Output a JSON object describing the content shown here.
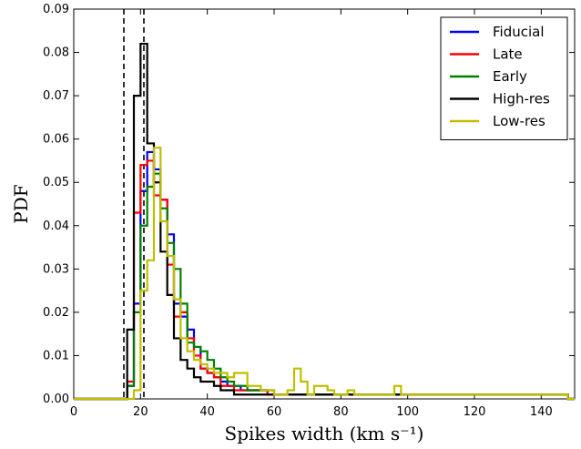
{
  "chart_data": {
    "type": "histogram",
    "title": "",
    "xlabel": "Spikes width (km s⁻¹)",
    "ylabel": "PDF",
    "xlim": [
      0,
      150
    ],
    "ylim": [
      0,
      0.09
    ],
    "xticks": [
      0,
      20,
      40,
      60,
      80,
      100,
      120,
      140
    ],
    "yticks": [
      0.0,
      0.01,
      0.02,
      0.03,
      0.04,
      0.05,
      0.06,
      0.07,
      0.08,
      0.09
    ],
    "ytick_labels": [
      "0.00",
      "0.01",
      "0.02",
      "0.03",
      "0.04",
      "0.05",
      "0.06",
      "0.07",
      "0.08",
      "0.09"
    ],
    "grid": false,
    "legend_position": "top-right",
    "vlines": [
      {
        "x": 15,
        "style": "dashed"
      },
      {
        "x": 21,
        "style": "dashed"
      }
    ],
    "bin_width": 2,
    "bin_edges_start": 14,
    "series": [
      {
        "name": "Fiducial",
        "color": "#0000ff",
        "values": [
          0.0,
          0.003,
          0.022,
          0.048,
          0.057,
          0.053,
          0.046,
          0.038,
          0.022,
          0.019,
          0.016,
          0.012,
          0.007,
          0.006,
          0.005,
          0.004,
          0.003,
          0.003,
          0.002,
          0.002,
          0.002,
          0.002,
          0.001,
          0.001,
          0.001,
          0.001,
          0.001,
          0.001,
          0.001,
          0.001,
          0.001,
          0.001,
          0.001,
          0.001,
          0.001,
          0.001,
          0.001,
          0.001,
          0.001,
          0.001,
          0.001,
          0.001,
          0.001,
          0.001,
          0.001,
          0.001,
          0.001,
          0.001,
          0.001,
          0.001,
          0.001,
          0.001,
          0.001,
          0.001,
          0.001,
          0.001,
          0.001,
          0.001,
          0.001,
          0.001,
          0.001,
          0.001,
          0.001,
          0.001,
          0.001,
          0.001,
          0.001,
          0.0
        ]
      },
      {
        "name": "Late",
        "color": "#ff0000",
        "values": [
          0.0,
          0.004,
          0.043,
          0.054,
          0.055,
          0.047,
          0.046,
          0.031,
          0.019,
          0.02,
          0.014,
          0.01,
          0.007,
          0.006,
          0.005,
          0.003,
          0.003,
          0.002,
          0.002,
          0.002,
          0.002,
          0.002,
          0.001,
          0.001,
          0.001,
          0.001,
          0.001,
          0.001,
          0.001,
          0.001,
          0.001,
          0.001,
          0.001,
          0.001,
          0.001,
          0.001,
          0.001,
          0.001,
          0.001,
          0.001,
          0.001,
          0.001,
          0.001,
          0.001,
          0.001,
          0.001,
          0.001,
          0.001,
          0.001,
          0.001,
          0.001,
          0.001,
          0.001,
          0.001,
          0.001,
          0.001,
          0.001,
          0.001,
          0.001,
          0.001,
          0.001,
          0.001,
          0.001,
          0.001,
          0.001,
          0.001,
          0.001,
          0.0
        ]
      },
      {
        "name": "Early",
        "color": "#008000",
        "values": [
          0.0,
          0.003,
          0.02,
          0.04,
          0.049,
          0.052,
          0.044,
          0.036,
          0.03,
          0.022,
          0.013,
          0.012,
          0.011,
          0.009,
          0.007,
          0.005,
          0.004,
          0.003,
          0.003,
          0.002,
          0.002,
          0.002,
          0.002,
          0.001,
          0.001,
          0.001,
          0.001,
          0.001,
          0.001,
          0.001,
          0.001,
          0.001,
          0.001,
          0.001,
          0.001,
          0.001,
          0.001,
          0.001,
          0.001,
          0.001,
          0.001,
          0.001,
          0.001,
          0.001,
          0.001,
          0.001,
          0.001,
          0.001,
          0.001,
          0.001,
          0.001,
          0.001,
          0.001,
          0.001,
          0.001,
          0.001,
          0.001,
          0.001,
          0.001,
          0.001,
          0.001,
          0.001,
          0.001,
          0.001,
          0.001,
          0.001,
          0.001,
          0.0
        ]
      },
      {
        "name": "High-res",
        "color": "#000000",
        "values": [
          0.0,
          0.016,
          0.07,
          0.082,
          0.059,
          0.05,
          0.034,
          0.024,
          0.014,
          0.009,
          0.007,
          0.005,
          0.004,
          0.004,
          0.003,
          0.002,
          0.002,
          0.001,
          0.001,
          0.001,
          0.001,
          0.001,
          0.001,
          0.001,
          0.001,
          0.001,
          0.001,
          0.001,
          0.001,
          0.001,
          0.001,
          0.001,
          0.001,
          0.001,
          0.001,
          0.001,
          0.001,
          0.001,
          0.001,
          0.001,
          0.001,
          0.001,
          0.001,
          0.001,
          0.001,
          0.001,
          0.001,
          0.001,
          0.001,
          0.001,
          0.001,
          0.001,
          0.001,
          0.001,
          0.001,
          0.001,
          0.001,
          0.001,
          0.001,
          0.001,
          0.001,
          0.001,
          0.001,
          0.001,
          0.001,
          0.001,
          0.001,
          0.0
        ]
      },
      {
        "name": "Low-res",
        "color": "#bfbf00",
        "values": [
          0.0,
          0.0,
          0.002,
          0.025,
          0.032,
          0.058,
          0.041,
          0.033,
          0.023,
          0.014,
          0.011,
          0.009,
          0.008,
          0.007,
          0.006,
          0.006,
          0.005,
          0.006,
          0.006,
          0.003,
          0.003,
          0.002,
          0.002,
          0.001,
          0.001,
          0.002,
          0.007,
          0.004,
          0.001,
          0.003,
          0.003,
          0.002,
          0.001,
          0.001,
          0.002,
          0.001,
          0.001,
          0.001,
          0.001,
          0.001,
          0.001,
          0.003,
          0.001,
          0.001,
          0.001,
          0.001,
          0.001,
          0.001,
          0.001,
          0.001,
          0.001,
          0.001,
          0.001,
          0.001,
          0.001,
          0.001,
          0.001,
          0.001,
          0.001,
          0.001,
          0.001,
          0.001,
          0.001,
          0.001,
          0.001,
          0.001,
          0.001,
          0.0
        ]
      }
    ]
  }
}
